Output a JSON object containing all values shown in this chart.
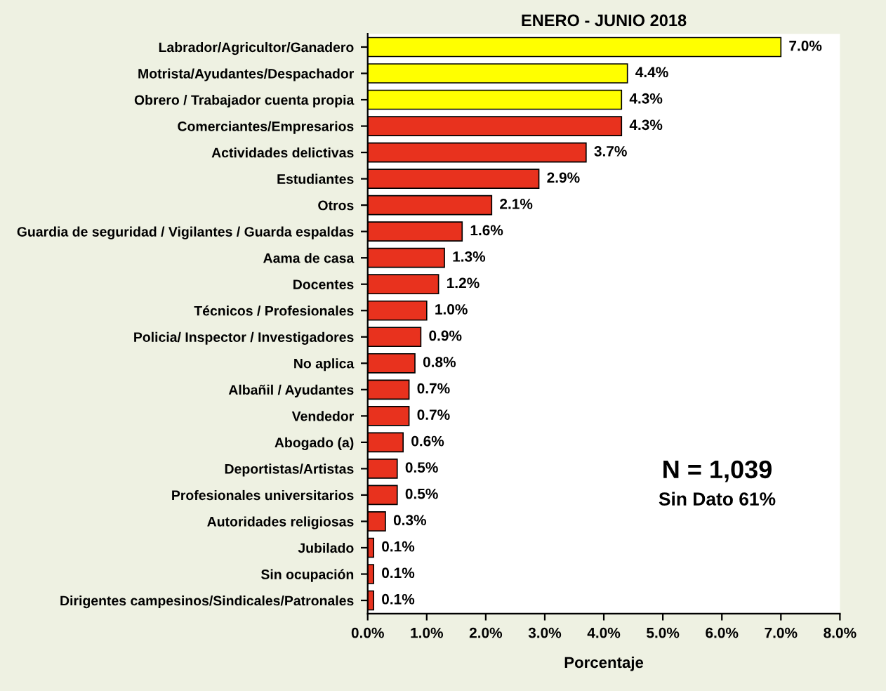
{
  "chart_data": {
    "type": "bar",
    "orientation": "horizontal",
    "title": "ENERO - JUNIO 2018",
    "xlabel": "Porcentaje",
    "categories": [
      "Labrador/Agricultor/Ganadero",
      "Motrista/Ayudantes/Despachador",
      "Obrero / Trabajador cuenta propia",
      "Comerciantes/Empresarios",
      "Actividades delictivas",
      "Estudiantes",
      "Otros",
      "Guardia de seguridad / Vigilantes / Guarda espaldas",
      "Aama de casa",
      "Docentes",
      "Técnicos / Profesionales",
      "Policia/ Inspector / Investigadores",
      "No aplica",
      "Albañil / Ayudantes",
      "Vendedor",
      "Abogado (a)",
      "Deportistas/Artistas",
      "Profesionales universitarios",
      "Autoridades religiosas",
      "Jubilado",
      "Sin ocupación",
      "Dirigentes campesinos/Sindicales/Patronales"
    ],
    "values": [
      7.0,
      4.4,
      4.3,
      4.3,
      3.7,
      2.9,
      2.1,
      1.6,
      1.3,
      1.2,
      1.0,
      0.9,
      0.8,
      0.7,
      0.7,
      0.6,
      0.5,
      0.5,
      0.3,
      0.1,
      0.1,
      0.1
    ],
    "value_labels": [
      "7.0%",
      "4.4%",
      "4.3%",
      "4.3%",
      "3.7%",
      "2.9%",
      "2.1%",
      "1.6%",
      "1.3%",
      "1.2%",
      "1.0%",
      "0.9%",
      "0.8%",
      "0.7%",
      "0.7%",
      "0.6%",
      "0.5%",
      "0.5%",
      "0.3%",
      "0.1%",
      "0.1%",
      "0.1%"
    ],
    "colors": [
      "#ffff00",
      "#ffff00",
      "#ffff00",
      "#e8321e",
      "#e8321e",
      "#e8321e",
      "#e8321e",
      "#e8321e",
      "#e8321e",
      "#e8321e",
      "#e8321e",
      "#e8321e",
      "#e8321e",
      "#e8321e",
      "#e8321e",
      "#e8321e",
      "#e8321e",
      "#e8321e",
      "#e8321e",
      "#e8321e",
      "#e8321e",
      "#e8321e"
    ],
    "xlim": [
      0,
      8
    ],
    "xticks": [
      {
        "value": 0,
        "label": "0.0%"
      },
      {
        "value": 1,
        "label": "1.0%"
      },
      {
        "value": 2,
        "label": "2.0%"
      },
      {
        "value": 3,
        "label": "3.0%"
      },
      {
        "value": 4,
        "label": "4.0%"
      },
      {
        "value": 5,
        "label": "5.0%"
      },
      {
        "value": 6,
        "label": "6.0%"
      },
      {
        "value": 7,
        "label": "7.0%"
      },
      {
        "value": 8,
        "label": "8.0%"
      }
    ],
    "annotations": [
      "N = 1,039",
      "Sin Dato 61%"
    ],
    "grid": false,
    "legend": false
  }
}
